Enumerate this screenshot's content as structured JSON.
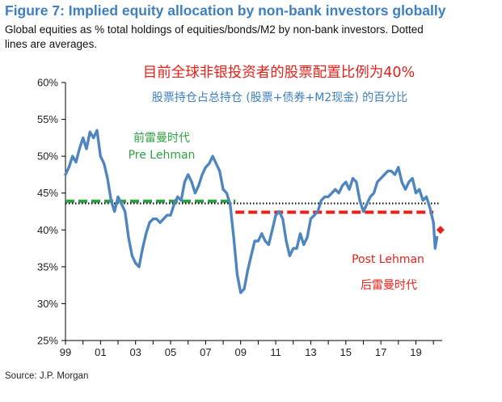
{
  "header": {
    "title": "Figure 7: Implied equity allocation by non-bank investors globally",
    "subtitle": "Global equities as % total holdings of equities/bonds/M2 by non-bank investors. Dotted lines are averages."
  },
  "footer": {
    "source": "Source: J.P. Morgan"
  },
  "colors": {
    "line": "#4f86c0",
    "pre": "#2ea043",
    "post": "#e8201a",
    "title": "#3d7fbf"
  },
  "chart_data": {
    "type": "line",
    "title": "Figure 7: Implied equity allocation by non-bank investors globally",
    "ylim": [
      25,
      60
    ],
    "xlim": [
      1999,
      2020.5
    ],
    "yticks": [
      60,
      55,
      50,
      45,
      40,
      35,
      30,
      25
    ],
    "ytick_labels": [
      "60%",
      "55%",
      "50%",
      "45%",
      "40%",
      "35%",
      "30%",
      "25%"
    ],
    "xticks": [
      1999,
      2001,
      2003,
      2005,
      2007,
      2009,
      2011,
      2013,
      2015,
      2017,
      2019
    ],
    "xtick_labels": [
      "99",
      "01",
      "03",
      "05",
      "07",
      "09",
      "11",
      "13",
      "15",
      "17",
      "19"
    ],
    "series": [
      {
        "x": [
          1999.0,
          1999.2,
          1999.4,
          1999.6,
          1999.8,
          2000.0,
          2000.2,
          2000.4,
          2000.6,
          2000.8,
          2001.0,
          2001.2,
          2001.4,
          2001.6,
          2001.8,
          2002.0,
          2002.2,
          2002.4,
          2002.6,
          2002.8,
          2003.0,
          2003.2,
          2003.4,
          2003.6,
          2003.8,
          2004.0,
          2004.2,
          2004.4,
          2004.6,
          2004.8,
          2005.0,
          2005.2,
          2005.4,
          2005.6,
          2005.8,
          2006.0,
          2006.2,
          2006.4,
          2006.6,
          2006.8,
          2007.0,
          2007.2,
          2007.4,
          2007.6,
          2007.8,
          2008.0,
          2008.2,
          2008.4,
          2008.6,
          2008.8,
          2009.0,
          2009.2,
          2009.4,
          2009.6,
          2009.8,
          2010.0,
          2010.2,
          2010.4,
          2010.6,
          2010.8,
          2011.0,
          2011.2,
          2011.4,
          2011.6,
          2011.8,
          2012.0,
          2012.2,
          2012.4,
          2012.6,
          2012.8,
          2013.0,
          2013.2,
          2013.4,
          2013.6,
          2013.8,
          2014.0,
          2014.2,
          2014.4,
          2014.6,
          2014.8,
          2015.0,
          2015.2,
          2015.4,
          2015.6,
          2015.8,
          2016.0,
          2016.2,
          2016.4,
          2016.6,
          2016.8,
          2017.0,
          2017.2,
          2017.4,
          2017.6,
          2017.8,
          2018.0,
          2018.2,
          2018.4,
          2018.6,
          2018.8,
          2019.0,
          2019.2,
          2019.4,
          2019.6,
          2019.8,
          2020.0,
          2020.1,
          2020.2
        ],
        "values": [
          47.5,
          48.5,
          50.0,
          49.2,
          51.0,
          52.5,
          51.0,
          53.3,
          52.5,
          53.5,
          50.0,
          49.0,
          47.0,
          44.0,
          42.5,
          44.5,
          43.5,
          42.5,
          39.0,
          36.5,
          35.5,
          35.0,
          37.5,
          39.5,
          41.0,
          41.5,
          41.5,
          41.0,
          41.5,
          42.0,
          42.0,
          43.5,
          44.5,
          44.0,
          46.5,
          47.5,
          46.5,
          45.0,
          46.0,
          47.5,
          48.5,
          49.0,
          50.0,
          49.0,
          48.0,
          45.5,
          45.0,
          43.5,
          39.0,
          34.0,
          31.5,
          32.0,
          34.5,
          36.5,
          38.5,
          38.5,
          39.5,
          38.5,
          38.0,
          40.0,
          42.0,
          42.5,
          41.5,
          38.5,
          36.5,
          37.5,
          37.5,
          39.5,
          38.0,
          39.0,
          41.5,
          42.0,
          42.5,
          44.0,
          44.5,
          44.5,
          45.0,
          45.5,
          45.0,
          46.0,
          46.5,
          45.5,
          47.0,
          46.5,
          44.0,
          42.5,
          43.5,
          44.5,
          45.0,
          46.5,
          47.0,
          47.5,
          48.0,
          48.0,
          47.5,
          48.5,
          46.5,
          45.5,
          46.5,
          47.0,
          45.0,
          45.5,
          44.0,
          44.5,
          43.0,
          41.0,
          37.5,
          39.0
        ]
      }
    ],
    "averages": [
      {
        "name": "Pre Lehman",
        "x_from": 1999.0,
        "x_to": 2008.7,
        "value": 43.9,
        "color": "#2ea043",
        "style": "dashed"
      },
      {
        "name": "Post Lehman",
        "x_from": 2008.7,
        "x_to": 2020.0,
        "value": 42.4,
        "color": "#e8201a",
        "style": "dashed"
      },
      {
        "name": "overall",
        "x_from": 1999.0,
        "x_to": 2020.3,
        "value": 43.6,
        "color": "#000000",
        "style": "dotted"
      }
    ],
    "latest_point": {
      "x": 2020.4,
      "value": 40.0,
      "color": "#e8201a"
    },
    "annotations": [
      {
        "id": "headline",
        "text": "目前全球非银投资者的股票配置比例为40%",
        "color": "#e8201a"
      },
      {
        "id": "sub",
        "text": "股票持仓占总持仓 (股票+债券+M2现金) 的百分比",
        "color": "#3d7fbf"
      },
      {
        "id": "pre-cn",
        "text": "前雷曼时代",
        "color": "#2ea043"
      },
      {
        "id": "pre-en",
        "text": "Pre Lehman",
        "color": "#2ea043"
      },
      {
        "id": "post-en",
        "text": "Post Lehman",
        "color": "#e8201a"
      },
      {
        "id": "post-cn",
        "text": "后雷曼时代",
        "color": "#e8201a"
      }
    ]
  }
}
